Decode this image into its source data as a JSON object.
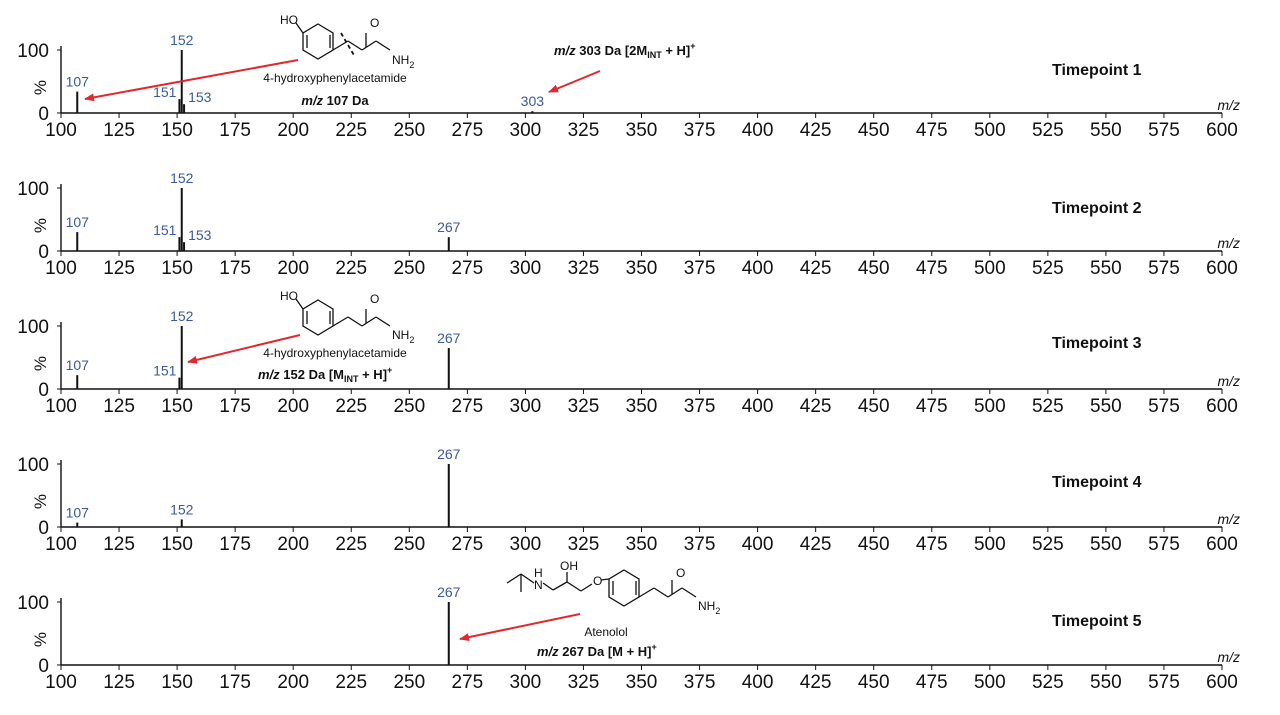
{
  "chart_data": [
    {
      "type": "line",
      "title": "Timepoint 1",
      "xlabel": "m/z",
      "ylabel": "%",
      "xlim": [
        100,
        600
      ],
      "ylim": [
        0,
        100
      ],
      "x_ticks": [
        "100",
        "125",
        "150",
        "175",
        "200",
        "225",
        "250",
        "275",
        "300",
        "325",
        "350",
        "375",
        "400",
        "425",
        "450",
        "475",
        "500",
        "525",
        "550",
        "575",
        "600"
      ],
      "y_ticks": [
        "0",
        "100"
      ],
      "peaks": [
        {
          "mz": 107,
          "intensity": 34,
          "label": "107"
        },
        {
          "mz": 151,
          "intensity": 22,
          "label": "151"
        },
        {
          "mz": 152,
          "intensity": 100,
          "label": "152"
        },
        {
          "mz": 153,
          "intensity": 14,
          "label": "153"
        },
        {
          "mz": 303,
          "intensity": 3,
          "label": "303"
        }
      ],
      "annotations": [
        {
          "name": "4-hydroxyphenylacetamide",
          "mz_text": "m/z",
          "text_rest": " 107 Da"
        },
        {
          "mz_text": "m/z",
          "text_rest": " 303 Da [2M",
          "sub": "INT",
          "after": " + H]",
          "sup": "+"
        }
      ]
    },
    {
      "type": "line",
      "title": "Timepoint 2",
      "xlabel": "m/z",
      "ylabel": "%",
      "xlim": [
        100,
        600
      ],
      "ylim": [
        0,
        100
      ],
      "x_ticks": [
        "100",
        "125",
        "150",
        "175",
        "200",
        "225",
        "250",
        "275",
        "300",
        "325",
        "350",
        "375",
        "400",
        "425",
        "450",
        "475",
        "500",
        "525",
        "550",
        "575",
        "600"
      ],
      "y_ticks": [
        "0",
        "100"
      ],
      "peaks": [
        {
          "mz": 107,
          "intensity": 30,
          "label": "107"
        },
        {
          "mz": 151,
          "intensity": 22,
          "label": "151"
        },
        {
          "mz": 152,
          "intensity": 100,
          "label": "152"
        },
        {
          "mz": 153,
          "intensity": 14,
          "label": "153"
        },
        {
          "mz": 267,
          "intensity": 22,
          "label": "267"
        }
      ],
      "annotations": []
    },
    {
      "type": "line",
      "title": "Timepoint 3",
      "xlabel": "m/z",
      "ylabel": "%",
      "xlim": [
        100,
        600
      ],
      "ylim": [
        0,
        100
      ],
      "x_ticks": [
        "100",
        "125",
        "150",
        "175",
        "200",
        "225",
        "250",
        "275",
        "300",
        "325",
        "350",
        "375",
        "400",
        "425",
        "450",
        "475",
        "500",
        "525",
        "550",
        "575",
        "600"
      ],
      "y_ticks": [
        "0",
        "100"
      ],
      "peaks": [
        {
          "mz": 107,
          "intensity": 22,
          "label": "107"
        },
        {
          "mz": 151,
          "intensity": 18,
          "label": "151"
        },
        {
          "mz": 152,
          "intensity": 100,
          "label": "152"
        },
        {
          "mz": 267,
          "intensity": 65,
          "label": "267"
        }
      ],
      "annotations": [
        {
          "name": "4-hydroxyphenylacetamide",
          "mz_text": "m/z",
          "text_rest": " 152 Da [M",
          "sub": "INT",
          "after": " + H]",
          "sup": "+"
        }
      ]
    },
    {
      "type": "line",
      "title": "Timepoint 4",
      "xlabel": "m/z",
      "ylabel": "%",
      "xlim": [
        100,
        600
      ],
      "ylim": [
        0,
        100
      ],
      "x_ticks": [
        "100",
        "125",
        "150",
        "175",
        "200",
        "225",
        "250",
        "275",
        "300",
        "325",
        "350",
        "375",
        "400",
        "425",
        "450",
        "475",
        "500",
        "525",
        "550",
        "575",
        "600"
      ],
      "y_ticks": [
        "0",
        "100"
      ],
      "peaks": [
        {
          "mz": 107,
          "intensity": 7,
          "label": "107"
        },
        {
          "mz": 152,
          "intensity": 12,
          "label": "152"
        },
        {
          "mz": 267,
          "intensity": 100,
          "label": "267"
        }
      ],
      "annotations": []
    },
    {
      "type": "line",
      "title": "Timepoint 5",
      "xlabel": "m/z",
      "ylabel": "%",
      "xlim": [
        100,
        600
      ],
      "ylim": [
        0,
        100
      ],
      "x_ticks": [
        "100",
        "125",
        "150",
        "175",
        "200",
        "225",
        "250",
        "275",
        "300",
        "325",
        "350",
        "375",
        "400",
        "425",
        "450",
        "475",
        "500",
        "525",
        "550",
        "575",
        "600"
      ],
      "y_ticks": [
        "0",
        "100"
      ],
      "peaks": [
        {
          "mz": 267,
          "intensity": 100,
          "label": "267"
        }
      ],
      "annotations": [
        {
          "name": "Atenolol",
          "mz_text": "m/z",
          "text_rest": " 267 Da [M + H]",
          "sup": "+"
        }
      ]
    }
  ],
  "structures": {
    "ho": "HO",
    "nh2_main": "NH",
    "nh2_sub": "2",
    "o": "O",
    "oh": "OH",
    "n": "N",
    "h": "H"
  },
  "colors": {
    "peak_label": "#3a5a9c",
    "arrow": "#e0282e",
    "spectrum": "#111111"
  }
}
